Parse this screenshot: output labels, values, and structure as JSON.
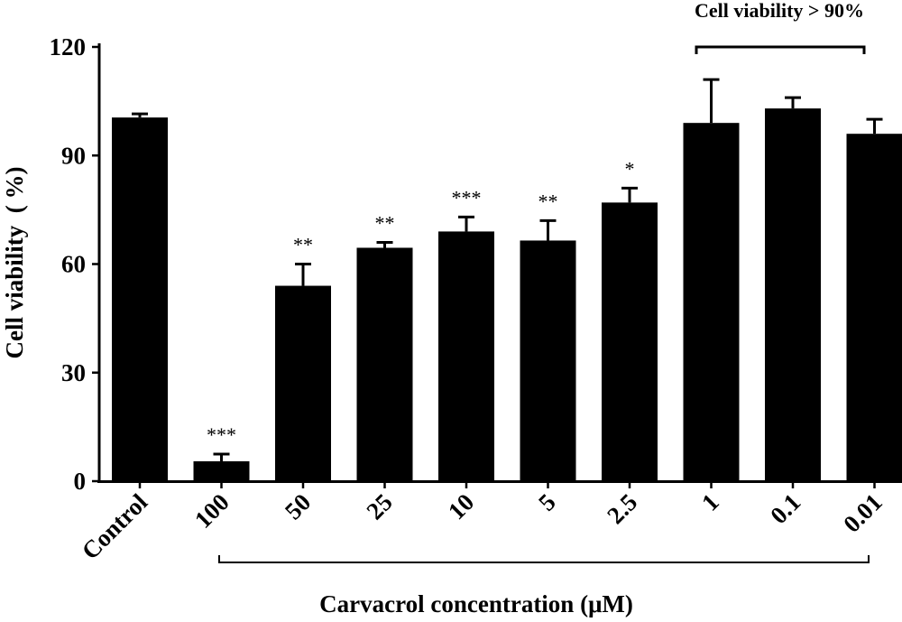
{
  "chart_data": {
    "type": "bar",
    "title": "",
    "ylabel": "Cell viability  ( %)",
    "xlabel": "Carvacrol concentration (μM)",
    "ylim": [
      0,
      120
    ],
    "yticks": [
      0,
      30,
      60,
      90,
      120
    ],
    "categories": [
      "Control",
      "100",
      "50",
      "25",
      "10",
      "5",
      "2.5",
      "1",
      "0.1",
      "0.01"
    ],
    "values": [
      100.5,
      5.5,
      54,
      64.5,
      69,
      66.5,
      77,
      99,
      103,
      96
    ],
    "errors": [
      1,
      2,
      6,
      1.5,
      4,
      5.5,
      4,
      12,
      3,
      4
    ],
    "significance": [
      "",
      "***",
      "**",
      "**",
      "***",
      "**",
      "*",
      "",
      "",
      ""
    ],
    "bracket_label": "Cell viability > 90%",
    "bar_color": "#000000",
    "grid": false,
    "legend": "none"
  }
}
